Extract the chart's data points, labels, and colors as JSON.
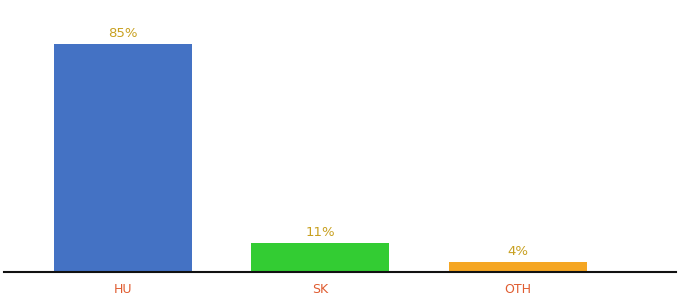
{
  "categories": [
    "HU",
    "SK",
    "OTH"
  ],
  "values": [
    85,
    11,
    4
  ],
  "bar_colors": [
    "#4472c4",
    "#33cc33",
    "#f5a623"
  ],
  "label_color": "#c8a020",
  "label_fontsize": 9.5,
  "xlabel_fontsize": 9,
  "xlabel_color": "#e05c30",
  "ylim": [
    0,
    100
  ],
  "background_color": "#ffffff",
  "x_positions": [
    1,
    2,
    3
  ],
  "bar_width": 0.7,
  "xlim": [
    0.4,
    3.8
  ]
}
